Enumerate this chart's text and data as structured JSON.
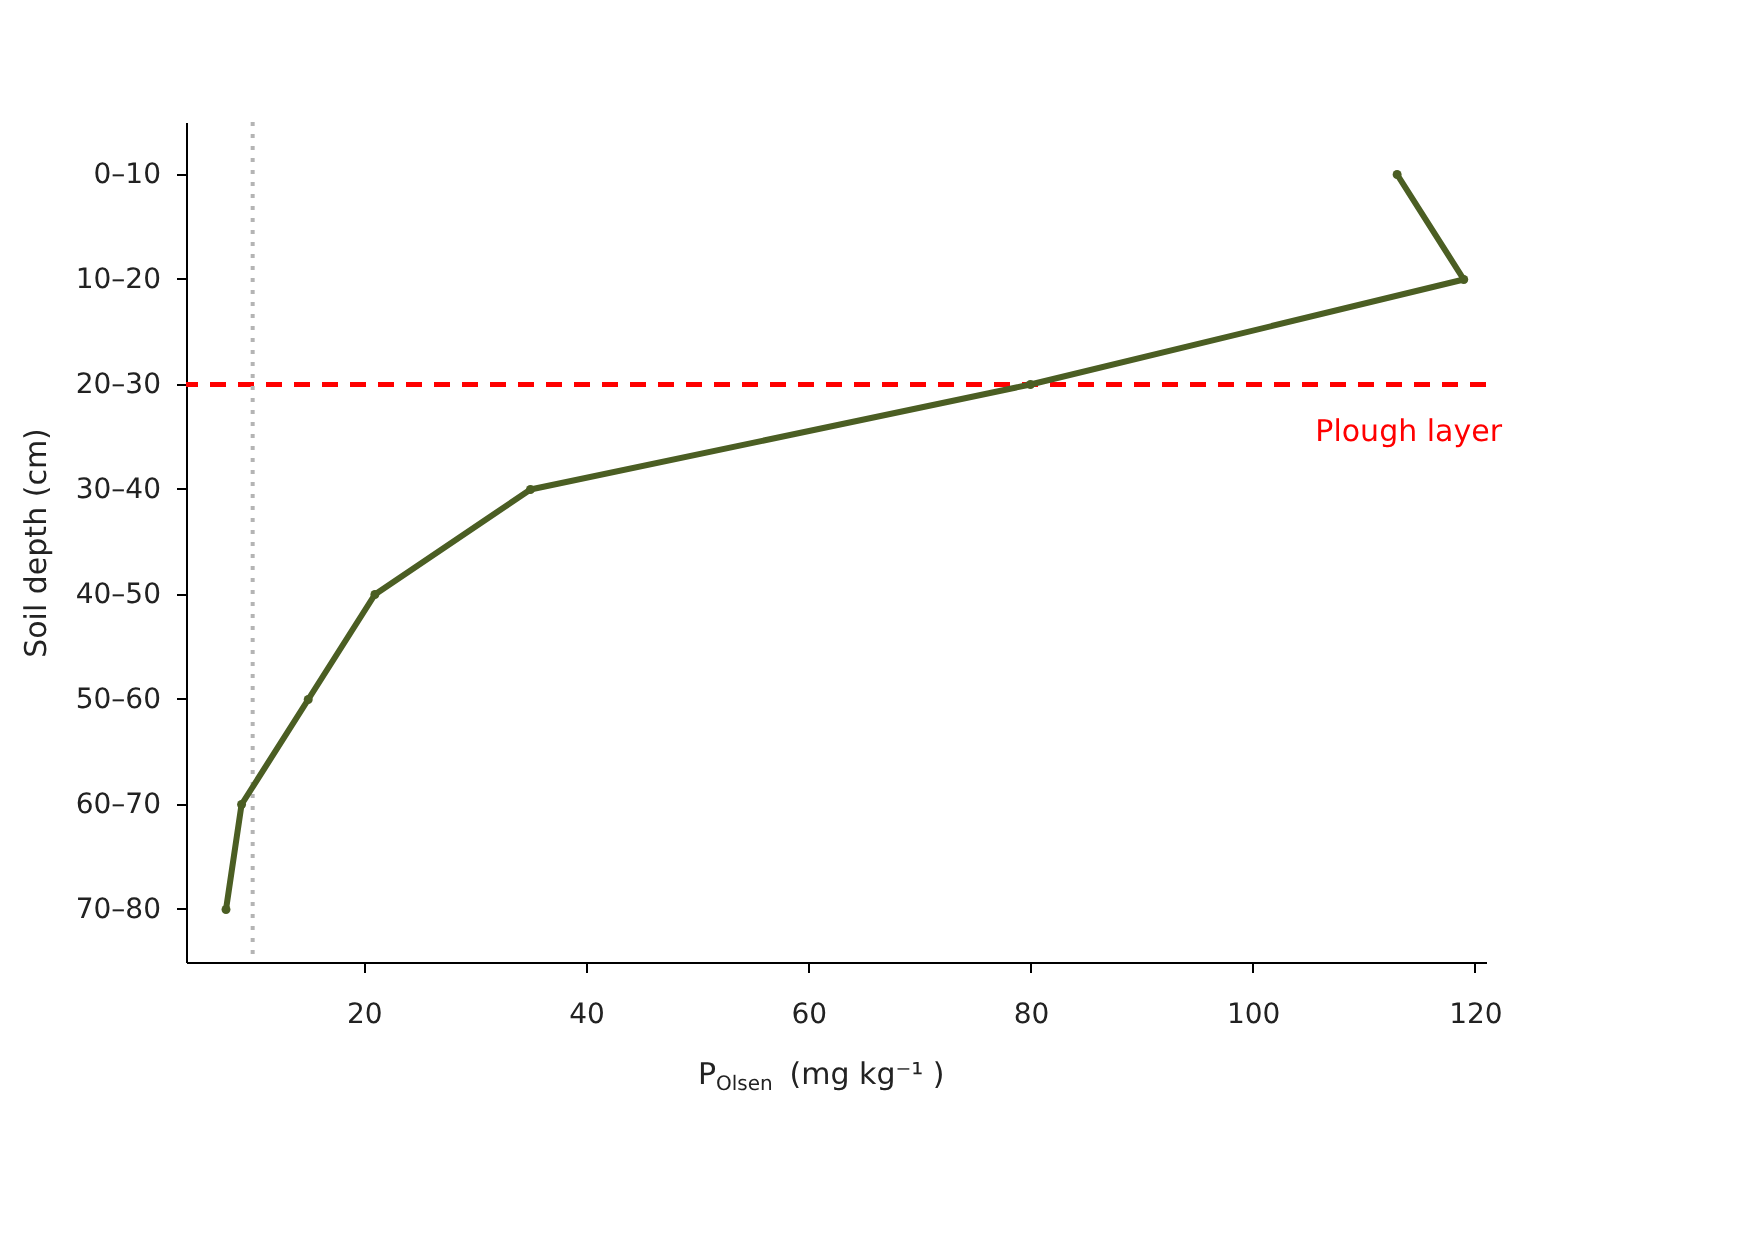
{
  "chart_data": {
    "type": "line",
    "orientation": "horizontal",
    "xlabel": "P$_{Olsen}$ (mg kg⁻¹ )",
    "ylabel": "Soil depth (cm)",
    "categories": [
      "0–10",
      "10–20",
      "20–30",
      "30–40",
      "40–50",
      "50–60",
      "60–70",
      "70–80"
    ],
    "series": [
      {
        "color": "#4b5e23",
        "values": [
          113,
          119,
          80,
          35,
          21,
          15,
          9,
          7.6
        ]
      }
    ],
    "xlim": [
      4,
      121
    ],
    "xticks": [
      20,
      40,
      60,
      80,
      100,
      120
    ],
    "ref_lines": [
      {
        "axis": "y",
        "value": "20–30",
        "label": "Plough layer",
        "color": "#ff0000",
        "line_style": "dashed"
      },
      {
        "axis": "x",
        "value": 10,
        "color": "#b4b4b4",
        "line_style": "dotted"
      }
    ],
    "marker": "circle"
  }
}
